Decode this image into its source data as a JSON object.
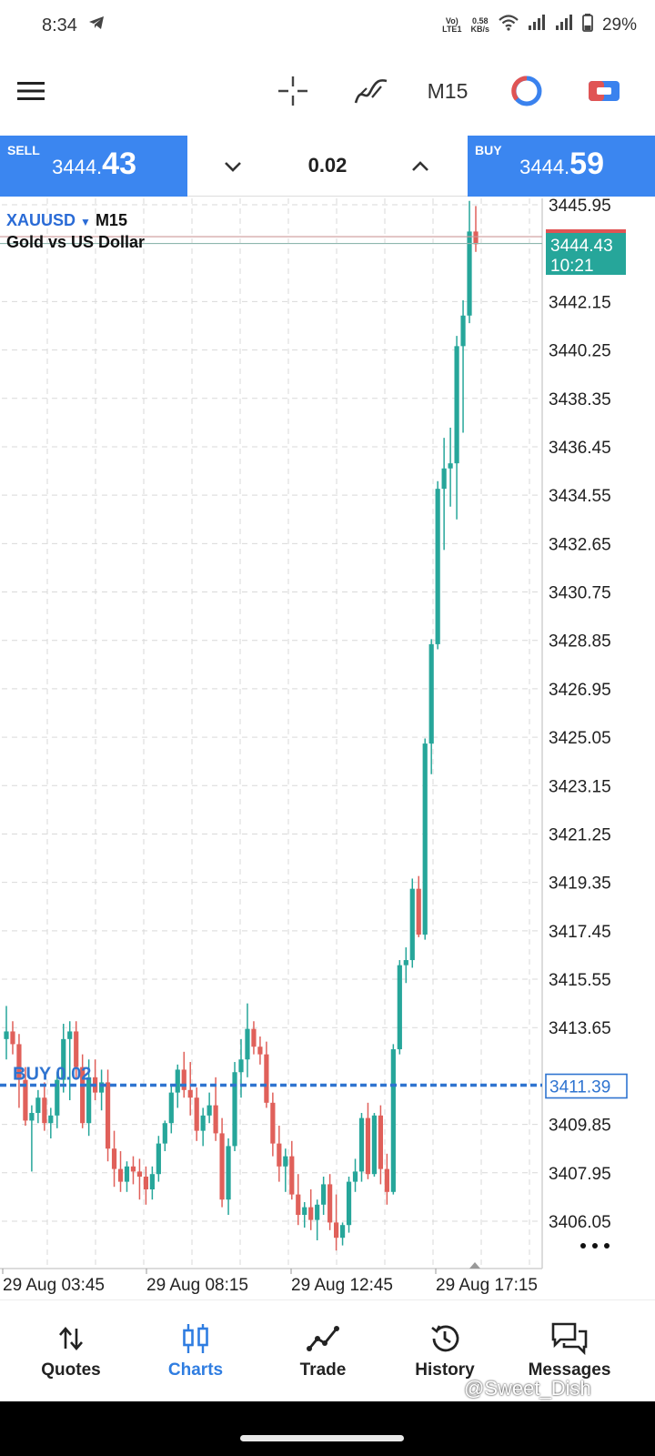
{
  "status_bar": {
    "time": "8:34",
    "net_top": "Vo)",
    "net_bottom": "LTE1",
    "speed_top": "0.58",
    "speed_bottom": "KB/s",
    "battery": "29%"
  },
  "toolbar": {
    "period": "M15"
  },
  "trade": {
    "sell_label": "SELL",
    "sell_price_prefix": "3444.",
    "sell_price_big": "43",
    "lot": "0.02",
    "buy_label": "BUY",
    "buy_price_prefix": "3444.",
    "buy_price_big": "59"
  },
  "chart": {
    "symbol": "XAUUSD",
    "timeframe": "M15",
    "description": "Gold vs US Dollar",
    "current_price": "3444.43",
    "countdown": "10:21",
    "position_label": "BUY 0.02",
    "position_price": "3411.39",
    "colors": {
      "bull": "#26a69a",
      "bear": "#e0605a",
      "position": "#2f74d0",
      "grid": "#d9d9d9"
    }
  },
  "chart_data": {
    "type": "candlestick",
    "y_ticks": [
      "3445.95",
      "3442.15",
      "3440.25",
      "3438.35",
      "3436.45",
      "3434.55",
      "3432.65",
      "3430.75",
      "3428.85",
      "3426.95",
      "3425.05",
      "3423.15",
      "3421.25",
      "3419.35",
      "3417.45",
      "3415.55",
      "3413.65",
      "3409.85",
      "3407.95",
      "3406.05"
    ],
    "x_ticks": [
      "29 Aug 03:45",
      "29 Aug 08:15",
      "29 Aug 12:45",
      "29 Aug 17:15"
    ],
    "ylim": [
      3404.7,
      3446.4
    ],
    "grid": true,
    "candles": [
      [
        3413.2,
        3414.5,
        3412.4,
        3413.5
      ],
      [
        3413.5,
        3413.9,
        3412.6,
        3413.0
      ],
      [
        3413.0,
        3413.4,
        3410.5,
        3411.6
      ],
      [
        3411.6,
        3412.1,
        3409.8,
        3410.0
      ],
      [
        3410.0,
        3410.6,
        3408.0,
        3410.3
      ],
      [
        3410.3,
        3411.2,
        3409.9,
        3410.9
      ],
      [
        3410.9,
        3411.5,
        3409.6,
        3409.9
      ],
      [
        3409.9,
        3410.5,
        3409.3,
        3410.2
      ],
      [
        3410.2,
        3411.9,
        3409.7,
        3411.6
      ],
      [
        3411.6,
        3413.8,
        3411.1,
        3413.2
      ],
      [
        3413.2,
        3413.9,
        3410.8,
        3413.5
      ],
      [
        3413.5,
        3413.9,
        3411.6,
        3412.1
      ],
      [
        3412.1,
        3412.6,
        3409.7,
        3409.9
      ],
      [
        3409.9,
        3412.4,
        3409.4,
        3411.7
      ],
      [
        3411.7,
        3412.4,
        3410.8,
        3411.1
      ],
      [
        3411.1,
        3412.0,
        3410.4,
        3411.5
      ],
      [
        3411.5,
        3412.0,
        3408.4,
        3408.9
      ],
      [
        3408.9,
        3409.6,
        3407.4,
        3408.1
      ],
      [
        3408.1,
        3408.8,
        3407.2,
        3407.6
      ],
      [
        3407.6,
        3408.4,
        3407.2,
        3408.2
      ],
      [
        3408.2,
        3408.6,
        3407.5,
        3408.0
      ],
      [
        3408.0,
        3408.5,
        3406.9,
        3407.8
      ],
      [
        3407.8,
        3408.2,
        3406.7,
        3407.3
      ],
      [
        3407.3,
        3408.2,
        3406.9,
        3407.9
      ],
      [
        3407.9,
        3409.4,
        3407.6,
        3409.1
      ],
      [
        3409.1,
        3410.0,
        3408.8,
        3409.9
      ],
      [
        3409.9,
        3411.4,
        3409.5,
        3411.1
      ],
      [
        3411.1,
        3412.2,
        3410.5,
        3412.0
      ],
      [
        3412.0,
        3412.7,
        3410.9,
        3411.2
      ],
      [
        3411.2,
        3412.3,
        3410.2,
        3410.9
      ],
      [
        3410.9,
        3411.3,
        3409.2,
        3409.6
      ],
      [
        3409.6,
        3410.5,
        3409.0,
        3410.2
      ],
      [
        3410.2,
        3411.1,
        3409.9,
        3410.6
      ],
      [
        3410.6,
        3411.7,
        3409.2,
        3409.5
      ],
      [
        3409.5,
        3410.1,
        3406.6,
        3406.9
      ],
      [
        3406.9,
        3409.3,
        3406.3,
        3409.0
      ],
      [
        3409.0,
        3412.3,
        3408.8,
        3411.9
      ],
      [
        3411.9,
        3413.2,
        3410.9,
        3412.4
      ],
      [
        3412.4,
        3414.6,
        3411.7,
        3413.6
      ],
      [
        3413.6,
        3413.9,
        3412.6,
        3412.9
      ],
      [
        3412.9,
        3413.3,
        3412.2,
        3412.6
      ],
      [
        3412.6,
        3413.1,
        3410.5,
        3410.7
      ],
      [
        3410.7,
        3411.1,
        3408.6,
        3409.1
      ],
      [
        3409.1,
        3409.8,
        3407.6,
        3408.2
      ],
      [
        3408.2,
        3408.9,
        3407.2,
        3408.6
      ],
      [
        3408.6,
        3409.2,
        3406.9,
        3407.1
      ],
      [
        3407.1,
        3407.9,
        3405.9,
        3406.3
      ],
      [
        3406.3,
        3406.8,
        3405.8,
        3406.6
      ],
      [
        3406.6,
        3407.3,
        3405.7,
        3406.1
      ],
      [
        3406.1,
        3406.9,
        3405.3,
        3406.7
      ],
      [
        3406.7,
        3407.8,
        3406.3,
        3407.5
      ],
      [
        3407.5,
        3407.9,
        3405.7,
        3406.0
      ],
      [
        3406.0,
        3407.1,
        3404.9,
        3405.4
      ],
      [
        3405.4,
        3406.0,
        3405.1,
        3405.9
      ],
      [
        3405.9,
        3407.8,
        3405.6,
        3407.6
      ],
      [
        3407.6,
        3408.5,
        3407.2,
        3408.0
      ],
      [
        3408.0,
        3410.3,
        3407.6,
        3410.1
      ],
      [
        3410.1,
        3410.7,
        3407.7,
        3407.9
      ],
      [
        3407.9,
        3410.3,
        3407.8,
        3410.2
      ],
      [
        3410.2,
        3410.6,
        3407.5,
        3408.1
      ],
      [
        3408.1,
        3408.7,
        3406.7,
        3407.2
      ],
      [
        3407.2,
        3413.0,
        3407.1,
        3412.8
      ],
      [
        3412.8,
        3416.3,
        3412.6,
        3416.1
      ],
      [
        3416.1,
        3416.8,
        3415.4,
        3416.3
      ],
      [
        3416.3,
        3419.5,
        3416.0,
        3419.1
      ],
      [
        3419.1,
        3419.6,
        3417.2,
        3417.3
      ],
      [
        3417.3,
        3425.0,
        3417.1,
        3424.8
      ],
      [
        3424.8,
        3428.9,
        3423.6,
        3428.7
      ],
      [
        3428.7,
        3435.1,
        3428.5,
        3434.8
      ],
      [
        3434.8,
        3436.8,
        3432.4,
        3435.6
      ],
      [
        3435.6,
        3437.2,
        3434.1,
        3435.8
      ],
      [
        3435.8,
        3440.8,
        3433.6,
        3440.4
      ],
      [
        3440.4,
        3442.2,
        3437.0,
        3441.6
      ],
      [
        3441.6,
        3446.1,
        3441.3,
        3444.9
      ],
      [
        3444.9,
        3445.9,
        3444.1,
        3444.4
      ]
    ]
  },
  "nav": {
    "quotes": "Quotes",
    "charts": "Charts",
    "trade": "Trade",
    "history": "History",
    "messages": "Messages"
  },
  "watermark": "@Sweet_Dish"
}
